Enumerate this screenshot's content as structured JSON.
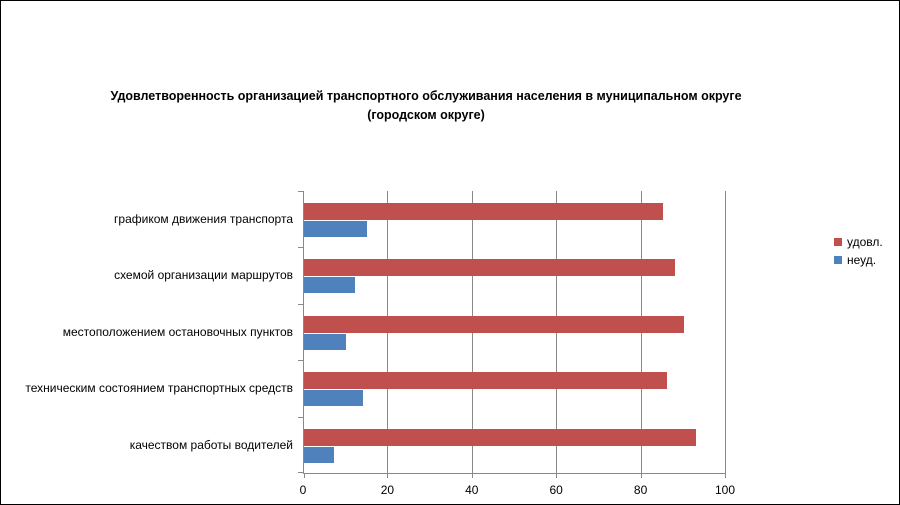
{
  "chart_data": {
    "type": "bar",
    "orientation": "horizontal",
    "title": "Удовлетворенность организацией транспортного обслуживания населения в муниципальном округе (городском округе)",
    "title_lines": [
      "Удовлетворенность организацией транспортного обслуживания населения в муниципальном округе",
      "(городском округе)"
    ],
    "categories": [
      "графиком движения транспорта",
      "схемой организации маршрутов",
      "местоположением остановочных пунктов",
      "техническим состоянием транспортных средств",
      "качеством работы водителей"
    ],
    "series": [
      {
        "name": "удовл.",
        "color": "#C0504D",
        "values": [
          85,
          88,
          90,
          86,
          93
        ]
      },
      {
        "name": "неуд.",
        "color": "#4F81BD",
        "values": [
          15,
          12,
          10,
          14,
          7
        ]
      }
    ],
    "xlim": [
      0,
      100
    ],
    "x_ticks": [
      0,
      20,
      40,
      60,
      80,
      100
    ],
    "grid": true,
    "legend_position": "right",
    "colors": {
      "gridline": "#898989",
      "axis": "#898989",
      "text": "#000000",
      "background": "#FFFFFF",
      "frame_border": "#000000"
    }
  }
}
